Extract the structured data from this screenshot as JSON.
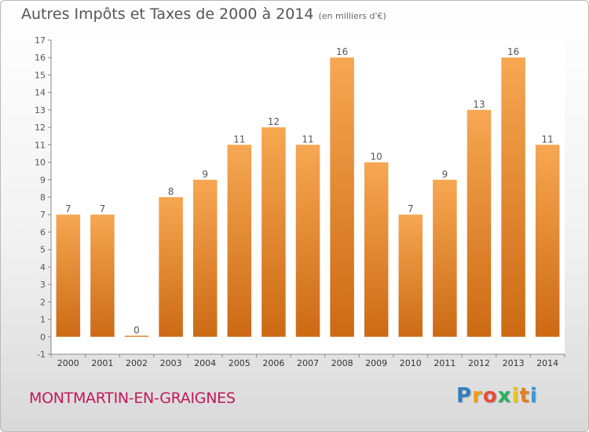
{
  "chart_data": {
    "type": "bar",
    "title": "Autres Impôts et Taxes de 2000 à 2014",
    "subtitle": "(en milliers d'€)",
    "categories": [
      "2000",
      "2001",
      "2002",
      "2003",
      "2004",
      "2005",
      "2006",
      "2007",
      "2008",
      "2009",
      "2010",
      "2011",
      "2012",
      "2013",
      "2014"
    ],
    "values": [
      7,
      7,
      0,
      8,
      9,
      11,
      12,
      11,
      16,
      10,
      7,
      9,
      13,
      16,
      11
    ],
    "yticks": [
      -1,
      0,
      1,
      2,
      3,
      4,
      5,
      6,
      7,
      8,
      9,
      10,
      11,
      12,
      13,
      14,
      15,
      16,
      17
    ],
    "ylim": [
      -1,
      17
    ],
    "grid": false,
    "colors": {
      "bar_light": "#f7a752",
      "bar_dark": "#cc6a14"
    }
  },
  "footer": {
    "commune": "MONTMARTIN-EN-GRAIGNES",
    "logo_letters": [
      "P",
      "r",
      "o",
      "x",
      "i",
      "t",
      "i"
    ],
    "logo_colors": [
      "#2f7fc1",
      "#f39c12",
      "#e74c3c",
      "#27ae60",
      "#f1c40f",
      "#e67e22",
      "#3498db"
    ]
  }
}
